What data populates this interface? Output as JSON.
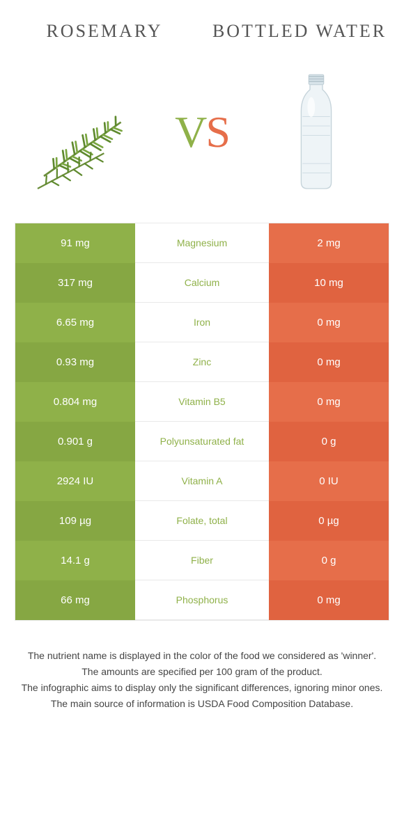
{
  "header": {
    "left_title": "Rosemary",
    "right_title": "Bottled water",
    "vs_v": "V",
    "vs_s": "S"
  },
  "colors": {
    "left": "#8fb149",
    "left_alt": "#86a743",
    "right": "#e66e4a",
    "right_alt": "#e06340",
    "mid_text_left": "#8fb149",
    "mid_text_right": "#e66e4a",
    "border": "#e9e9e9"
  },
  "rows": [
    {
      "left": "91 mg",
      "label": "Magnesium",
      "right": "2 mg",
      "winner": "left"
    },
    {
      "left": "317 mg",
      "label": "Calcium",
      "right": "10 mg",
      "winner": "left"
    },
    {
      "left": "6.65 mg",
      "label": "Iron",
      "right": "0 mg",
      "winner": "left"
    },
    {
      "left": "0.93 mg",
      "label": "Zinc",
      "right": "0 mg",
      "winner": "left"
    },
    {
      "left": "0.804 mg",
      "label": "Vitamin B5",
      "right": "0 mg",
      "winner": "left"
    },
    {
      "left": "0.901 g",
      "label": "Polyunsaturated fat",
      "right": "0 g",
      "winner": "left"
    },
    {
      "left": "2924 IU",
      "label": "Vitamin A",
      "right": "0 IU",
      "winner": "left"
    },
    {
      "left": "109 µg",
      "label": "Folate, total",
      "right": "0 µg",
      "winner": "left"
    },
    {
      "left": "14.1 g",
      "label": "Fiber",
      "right": "0 g",
      "winner": "left"
    },
    {
      "left": "66 mg",
      "label": "Phosphorus",
      "right": "0 mg",
      "winner": "left"
    }
  ],
  "footer": {
    "line1": "The nutrient name is displayed in the color of the food we considered as 'winner'.",
    "line2": "The amounts are specified per 100 gram of the product.",
    "line3": "The infographic aims to display only the significant differences, ignoring minor ones.",
    "line4": "The main source of information is USDA Food Composition Database."
  }
}
